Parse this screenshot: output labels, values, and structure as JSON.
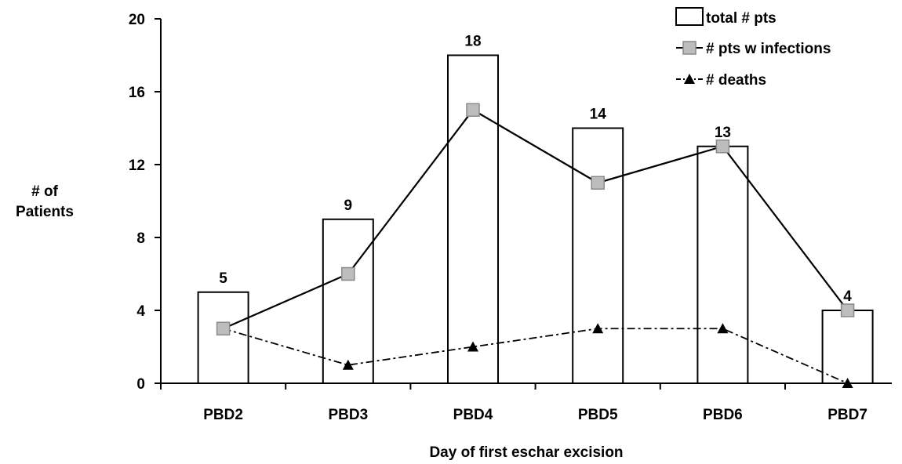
{
  "chart_data": {
    "type": "bar",
    "categories": [
      "PBD2",
      "PBD3",
      "PBD4",
      "PBD5",
      "PBD6",
      "PBD7"
    ],
    "series": [
      {
        "name": "total # pts",
        "type": "bar",
        "values": [
          5,
          9,
          18,
          14,
          13,
          4
        ],
        "data_labels": [
          "5",
          "9",
          "18",
          "14",
          "13",
          "4"
        ]
      },
      {
        "name": "# pts w infections",
        "type": "line",
        "marker": "square",
        "line_style": "solid",
        "values": [
          3,
          6,
          15,
          11,
          13,
          4
        ]
      },
      {
        "name": "# deaths",
        "type": "line",
        "marker": "triangle",
        "line_style": "dash-dot",
        "values": [
          3,
          1,
          2,
          3,
          3,
          0
        ]
      }
    ],
    "ylim": [
      0,
      20
    ],
    "yticks": [
      0,
      4,
      8,
      12,
      16,
      20
    ],
    "ylabel": [
      "# of",
      "Patients"
    ],
    "xlabel": "Day of first eschar excision",
    "title": "",
    "grid": false,
    "legend_position": "top-right",
    "colors": {
      "bar_fill": "#ffffff",
      "bar_stroke": "#000000",
      "marker_square_fill": "#bdbdbd",
      "marker_square_stroke": "#8a8a8a",
      "line": "#000000"
    }
  }
}
